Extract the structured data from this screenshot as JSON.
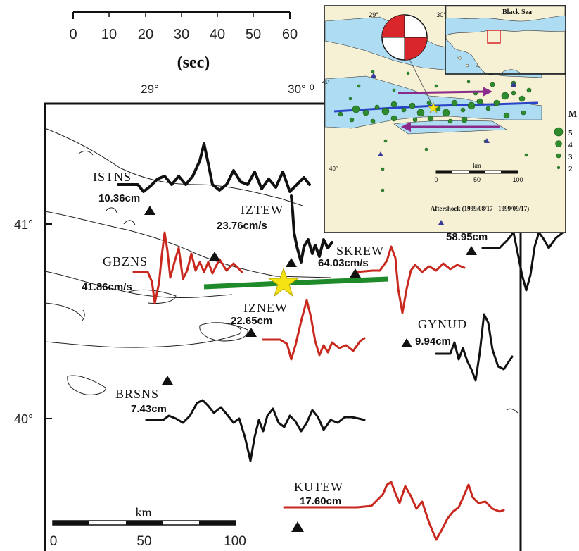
{
  "time_scale": {
    "ticks": [
      "0",
      "10",
      "20",
      "30",
      "40",
      "50",
      "60"
    ],
    "unit": "(sec)"
  },
  "longitude_labels": [
    "29°",
    "30°"
  ],
  "latitude_labels": [
    "41°",
    "40°"
  ],
  "distance_scale": {
    "label": "km",
    "ticks": [
      "0",
      "50",
      "100"
    ]
  },
  "stations": [
    {
      "code": "ISTNS",
      "value": "10.36cm"
    },
    {
      "code": "IZTEW",
      "value": "23.76cm/s"
    },
    {
      "code": "GBZNS",
      "value": "41.86cm/s"
    },
    {
      "code": "SKREW",
      "value": "64.03cm/s"
    },
    {
      "code": "IZNEW",
      "value": "22.65cm"
    },
    {
      "code": "GYNUD",
      "value": "9.94cm"
    },
    {
      "code": "BRSNS",
      "value": "7.43cm"
    },
    {
      "code": "KUTEW",
      "value": "17.60cm"
    },
    {
      "code": "",
      "value": "58.95cm"
    }
  ],
  "inset_regional": {
    "label": "Black Sea"
  },
  "inset_aftershocks": {
    "longitude_labels": [
      "29°",
      "30°"
    ],
    "latitude_labels": [
      "41°",
      "40°"
    ],
    "corner_label": "0",
    "scale_label": "km",
    "scale_ticks": [
      "0",
      "50",
      "100"
    ],
    "caption": "Aftershock (1999/08/17 - 1999/09/17)",
    "legend_title": "M",
    "legend_magnitudes": [
      "5",
      "4",
      "3",
      "2"
    ]
  },
  "colors": {
    "trace_black": "#111111",
    "trace_red": "#c8281e",
    "fault_green": "#1f8a2a",
    "epicenter_star": "#f5e313",
    "sea": "#aedcf2",
    "land": "#f6f0d4",
    "aftershock": "#2e8b2e",
    "arrow_purple": "#8a2a8a",
    "fault_blue": "#2b45c8"
  }
}
